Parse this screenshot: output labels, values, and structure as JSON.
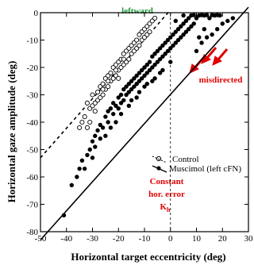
{
  "chart_data": {
    "type": "scatter",
    "title": "",
    "xlabel": "Horizontal target eccentricity (deg)",
    "ylabel": "Horizontal gaze amplitude (deg)",
    "xlim": [
      -50,
      30
    ],
    "ylim": [
      -80,
      0
    ],
    "x_ticks": [
      "-50",
      "-40",
      "-30",
      "-20",
      "-10",
      "0",
      "10",
      "20",
      "30"
    ],
    "y_ticks": [
      "0",
      "-10",
      "-20",
      "-30",
      "-40",
      "-50",
      "-60",
      "-70",
      "-80"
    ],
    "grid": false,
    "vertical_reference_x": 0,
    "annotations": {
      "top": "leftward",
      "misdirected": "misdirected",
      "constant_line1": "Constant",
      "constant_line2": "hor. error",
      "constant_sym": "K",
      "constant_sub": "h"
    },
    "colors": {
      "annotation_green": "#1f9a3a",
      "annotation_red": "#e00000",
      "markers": "#000000"
    },
    "legend": {
      "placement": "lower-right",
      "entries": [
        "Control",
        "Muscimol (left cFN)"
      ]
    },
    "series": [
      {
        "name": "Control",
        "marker": "open-circle",
        "fit_line": {
          "style": "dashed",
          "points": [
            [
              -50,
              -53
            ],
            [
              0,
              1
            ]
          ]
        },
        "points": [
          [
            -32,
            -33
          ],
          [
            -31,
            -35
          ],
          [
            -33,
            -38
          ],
          [
            -31,
            -40
          ],
          [
            -32,
            -42
          ],
          [
            -30,
            -30
          ],
          [
            -30,
            -34
          ],
          [
            -29,
            -36
          ],
          [
            -28,
            -32
          ],
          [
            -28,
            -29
          ],
          [
            -27,
            -27
          ],
          [
            -27,
            -31
          ],
          [
            -26,
            -26
          ],
          [
            -26,
            -30
          ],
          [
            -25,
            -24
          ],
          [
            -25,
            -28
          ],
          [
            -24,
            -23
          ],
          [
            -24,
            -27
          ],
          [
            -23,
            -22
          ],
          [
            -23,
            -25
          ],
          [
            -22,
            -20
          ],
          [
            -22,
            -24
          ],
          [
            -21,
            -19
          ],
          [
            -21,
            -23
          ],
          [
            -20,
            -18
          ],
          [
            -20,
            -21
          ],
          [
            -19,
            -17
          ],
          [
            -19,
            -20
          ],
          [
            -18,
            -15
          ],
          [
            -18,
            -19
          ],
          [
            -17,
            -14
          ],
          [
            -17,
            -18
          ],
          [
            -16,
            -13
          ],
          [
            -16,
            -17
          ],
          [
            -15,
            -12
          ],
          [
            -15,
            -15
          ],
          [
            -14,
            -11
          ],
          [
            -14,
            -14
          ],
          [
            -13,
            -10
          ],
          [
            -13,
            -13
          ],
          [
            -12,
            -8
          ],
          [
            -12,
            -12
          ],
          [
            -11,
            -7
          ],
          [
            -11,
            -10
          ],
          [
            -10,
            -6
          ],
          [
            -10,
            -9
          ],
          [
            -9,
            -5
          ],
          [
            -9,
            -8
          ],
          [
            -8,
            -4
          ],
          [
            -8,
            -7
          ],
          [
            -7,
            -3
          ],
          [
            -6,
            -2
          ],
          [
            -34,
            -40
          ],
          [
            -35,
            -42
          ],
          [
            -29,
            -33
          ],
          [
            -26,
            -28
          ],
          [
            -24,
            -25
          ],
          [
            -21,
            -21
          ],
          [
            -20,
            -24
          ],
          [
            -18,
            -17
          ]
        ]
      },
      {
        "name": "Muscimol (left cFN)",
        "marker": "filled-circle",
        "fit_line": {
          "style": "solid",
          "points": [
            [
              -50,
              -83
            ],
            [
              30,
              2
            ]
          ]
        },
        "points": [
          [
            -41,
            -74
          ],
          [
            -38,
            -63
          ],
          [
            -36,
            -60
          ],
          [
            -35,
            -57
          ],
          [
            -34,
            -54
          ],
          [
            -33,
            -57
          ],
          [
            -32,
            -52
          ],
          [
            -31,
            -50
          ],
          [
            -30,
            -47
          ],
          [
            -29,
            -45
          ],
          [
            -28,
            -43
          ],
          [
            -27,
            -41
          ],
          [
            -26,
            -42
          ],
          [
            -25,
            -38
          ],
          [
            -24,
            -40
          ],
          [
            -24,
            -36
          ],
          [
            -23,
            -35
          ],
          [
            -22,
            -37
          ],
          [
            -22,
            -33
          ],
          [
            -21,
            -34
          ],
          [
            -20,
            -31
          ],
          [
            -20,
            -35
          ],
          [
            -19,
            -30
          ],
          [
            -19,
            -33
          ],
          [
            -18,
            -28
          ],
          [
            -18,
            -32
          ],
          [
            -17,
            -27
          ],
          [
            -17,
            -30
          ],
          [
            -16,
            -26
          ],
          [
            -16,
            -29
          ],
          [
            -15,
            -25
          ],
          [
            -15,
            -28
          ],
          [
            -14,
            -24
          ],
          [
            -14,
            -27
          ],
          [
            -13,
            -23
          ],
          [
            -13,
            -26
          ],
          [
            -12,
            -22
          ],
          [
            -12,
            -25
          ],
          [
            -11,
            -21
          ],
          [
            -11,
            -24
          ],
          [
            -10,
            -20
          ],
          [
            -10,
            -23
          ],
          [
            -9,
            -19
          ],
          [
            -9,
            -22
          ],
          [
            -8,
            -18
          ],
          [
            -8,
            -21
          ],
          [
            -7,
            -16
          ],
          [
            -7,
            -20
          ],
          [
            -6,
            -15
          ],
          [
            -6,
            -19
          ],
          [
            -5,
            -14
          ],
          [
            -5,
            -18
          ],
          [
            -4,
            -13
          ],
          [
            -4,
            -17
          ],
          [
            -3,
            -12
          ],
          [
            -3,
            -16
          ],
          [
            -2,
            -11
          ],
          [
            -2,
            -15
          ],
          [
            -1,
            -10
          ],
          [
            -1,
            -14
          ],
          [
            0,
            -9
          ],
          [
            0,
            -13
          ],
          [
            1,
            -8
          ],
          [
            1,
            -12
          ],
          [
            2,
            -7
          ],
          [
            2,
            -11
          ],
          [
            3,
            -6
          ],
          [
            3,
            -10
          ],
          [
            4,
            -5
          ],
          [
            4,
            -9
          ],
          [
            5,
            -4
          ],
          [
            5,
            -8
          ],
          [
            6,
            -3
          ],
          [
            6,
            -7
          ],
          [
            7,
            -2
          ],
          [
            7,
            -6
          ],
          [
            8,
            -1
          ],
          [
            8,
            -5
          ],
          [
            9,
            0
          ],
          [
            9,
            -4
          ],
          [
            10,
            -2
          ],
          [
            11,
            -1
          ],
          [
            12,
            0
          ],
          [
            13,
            -1
          ],
          [
            14,
            0
          ],
          [
            15,
            -2
          ],
          [
            16,
            0
          ],
          [
            17,
            -1
          ],
          [
            18,
            0
          ],
          [
            19,
            -1
          ],
          [
            10,
            -14
          ],
          [
            12,
            -11
          ],
          [
            14,
            -9
          ],
          [
            16,
            -8
          ],
          [
            18,
            -6
          ],
          [
            20,
            -4
          ],
          [
            22,
            -3
          ],
          [
            24,
            -2
          ],
          [
            11,
            -9
          ],
          [
            13,
            -6
          ],
          [
            -27,
            -46
          ],
          [
            -23,
            -42
          ],
          [
            -19,
            -37
          ],
          [
            -15,
            -32
          ],
          [
            -12,
            -29
          ],
          [
            -9,
            -26
          ],
          [
            -6,
            -24
          ],
          [
            -3,
            -21
          ],
          [
            0,
            -18
          ],
          [
            -30,
            -53
          ],
          [
            -16,
            -34
          ],
          [
            -13,
            -31
          ],
          [
            -10,
            -27
          ],
          [
            -7,
            -25
          ],
          [
            -4,
            -22
          ],
          [
            -21,
            -40
          ],
          [
            -25,
            -45
          ],
          [
            -29,
            -49
          ],
          [
            2,
            -3
          ],
          [
            5,
            -1
          ]
        ]
      }
    ]
  }
}
